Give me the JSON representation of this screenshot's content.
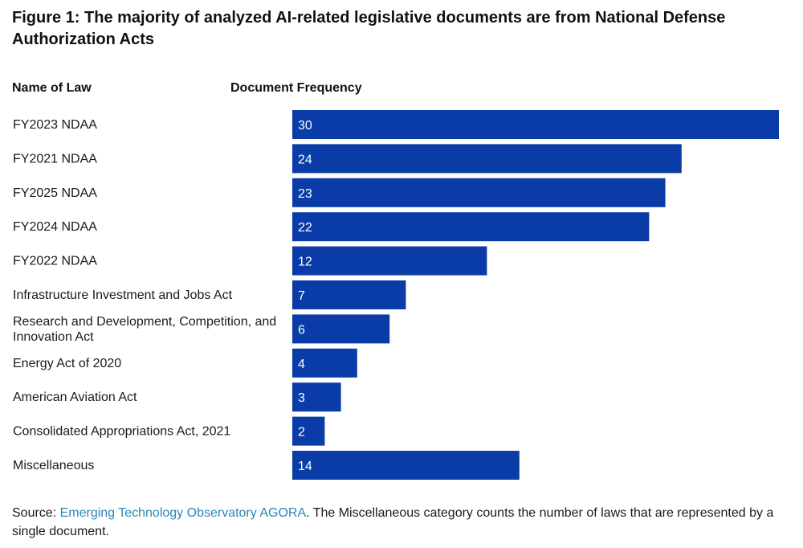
{
  "title": "Figure 1: The majority of analyzed AI-related legislative documents are from National Defense Authorization Acts",
  "columns": {
    "name": "Name of Law",
    "value": "Document Frequency"
  },
  "chart_data": {
    "type": "bar",
    "orientation": "horizontal",
    "title": "Figure 1: The majority of analyzed AI-related legislative documents are from National Defense Authorization Acts",
    "xlabel": "Document Frequency",
    "ylabel": "Name of Law",
    "categories": [
      "FY2023 NDAA",
      "FY2021 NDAA",
      "FY2025 NDAA",
      "FY2024 NDAA",
      "FY2022 NDAA",
      "Infrastructure Investment and Jobs Act",
      "Research and Development, Competition, and Innovation Act",
      "Energy Act of 2020",
      "American Aviation Act",
      "Consolidated Appropriations Act, 2021",
      "Miscellaneous"
    ],
    "values": [
      30,
      24,
      23,
      22,
      12,
      7,
      6,
      4,
      3,
      2,
      14
    ],
    "xlim": [
      0,
      30
    ],
    "grid": false,
    "legend": "none",
    "bar_color": "#0a3ca8",
    "label_color": "#ffffff"
  },
  "source": {
    "prefix": "Source: ",
    "link_text": "Emerging Technology Observatory AGORA",
    "suffix": ". The Miscellaneous category counts the number of laws that are represented by a single document."
  },
  "colors": {
    "link": "#2a86b9",
    "bar": "#0a3ca8"
  }
}
